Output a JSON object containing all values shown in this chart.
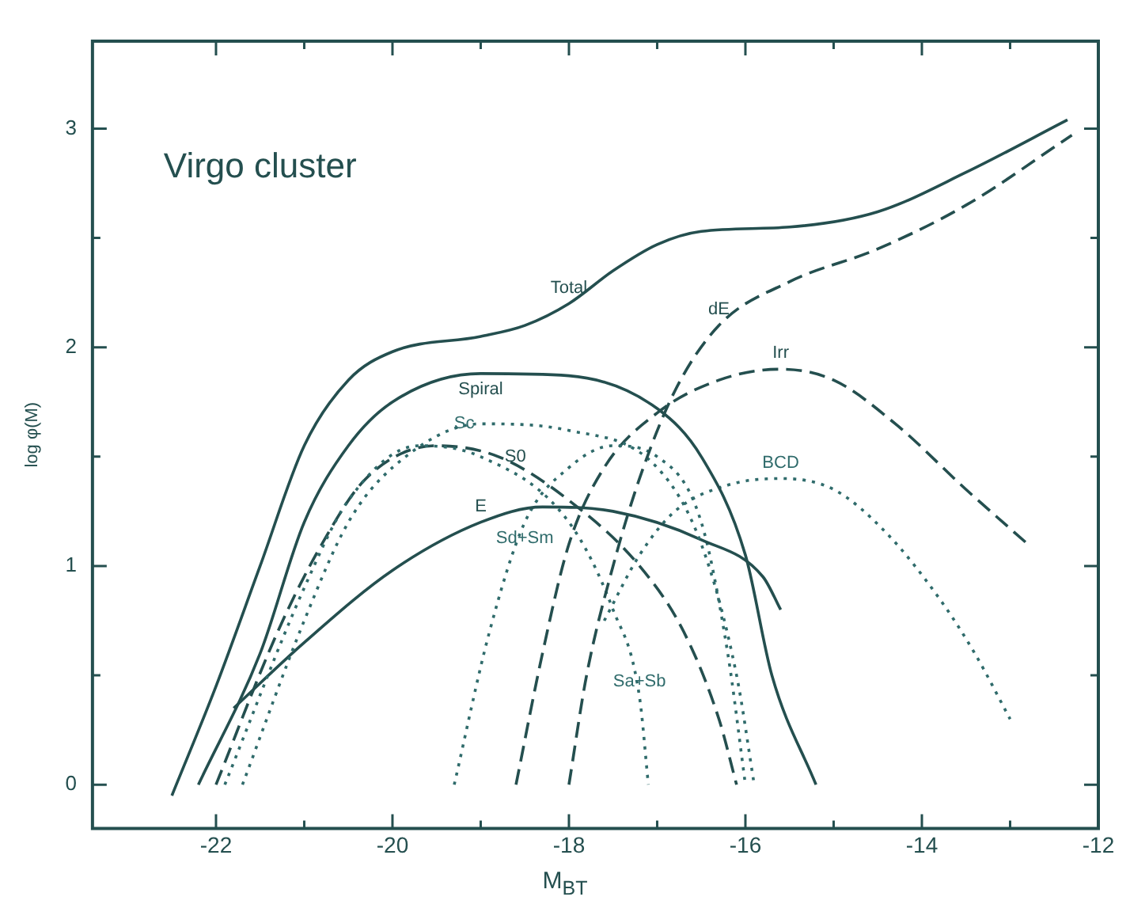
{
  "chart_data": {
    "type": "line",
    "title": "Virgo cluster",
    "xlabel": "M$_{BT}$",
    "ylabel": "log φ(M)",
    "xlim": [
      -23.4,
      -12
    ],
    "ylim": [
      -0.2,
      3.4
    ],
    "xticks": [
      -22,
      {
        "value": -21,
        "label": null
      },
      -20,
      {
        "value": -19,
        "label": null
      },
      -18,
      {
        "value": -17,
        "label": null
      },
      -16,
      {
        "value": -15,
        "label": null
      },
      -14,
      {
        "value": -13,
        "label": null
      },
      -12
    ],
    "yticks": [
      0,
      {
        "value": 0.5,
        "label": null
      },
      1,
      {
        "value": 1.5,
        "label": null
      },
      2,
      {
        "value": 2.5,
        "label": null
      },
      3
    ],
    "grid": false,
    "marker": "none",
    "series": [
      {
        "name": "Total",
        "color": "#244f4f",
        "line_style": "solid",
        "x": [
          -22.5,
          -22,
          -21.5,
          -21,
          -20.5,
          -20,
          -19,
          -18.5,
          -18,
          -17.5,
          -17,
          -16.5,
          -15.5,
          -14.5,
          -13.5,
          -12.35
        ],
        "values": [
          -0.05,
          0.45,
          1.0,
          1.55,
          1.85,
          1.98,
          2.05,
          2.1,
          2.2,
          2.35,
          2.47,
          2.53,
          2.55,
          2.62,
          2.8,
          3.04
        ]
      },
      {
        "name": "dE",
        "color": "#244f4f",
        "line_style": "dashed",
        "x": [
          -18,
          -17.8,
          -17.5,
          -17.2,
          -16.8,
          -16.3,
          -15.5,
          -14.5,
          -13.5,
          -12.3
        ],
        "values": [
          0,
          0.5,
          1.0,
          1.4,
          1.8,
          2.1,
          2.3,
          2.45,
          2.65,
          2.97
        ]
      },
      {
        "name": "Spiral",
        "color": "#244f4f",
        "line_style": "solid",
        "x": [
          -22.2,
          -21.5,
          -21,
          -20.5,
          -20,
          -19,
          -18,
          -17,
          -16.5,
          -16,
          -15.7,
          -15.2
        ],
        "values": [
          0,
          0.6,
          1.2,
          1.55,
          1.75,
          1.88,
          1.87,
          1.72,
          1.5,
          1.05,
          0.5,
          0
        ]
      },
      {
        "name": "Sc",
        "color": "#2f6b6b",
        "line_style": "dotted",
        "x": [
          -21.7,
          -21,
          -20.5,
          -20,
          -19,
          -18,
          -17,
          -16.5,
          -16.1,
          -15.9
        ],
        "values": [
          0,
          0.75,
          1.2,
          1.45,
          1.65,
          1.62,
          1.45,
          1.1,
          0.5,
          0
        ]
      },
      {
        "name": "Sa+Sb",
        "color": "#2f6b6b",
        "line_style": "dotted",
        "x": [
          -21.9,
          -21,
          -20.5,
          -19.7,
          -19,
          -18,
          -17.5,
          -17.2,
          -17.1
        ],
        "values": [
          0,
          0.9,
          1.3,
          1.55,
          1.5,
          1.2,
          0.8,
          0.4,
          0
        ]
      },
      {
        "name": "S0",
        "color": "#244f4f",
        "line_style": "dashed",
        "x": [
          -22,
          -21.3,
          -20.8,
          -20.3,
          -19.5,
          -18.8,
          -18,
          -17.2,
          -16.7,
          -16.3,
          -16.1
        ],
        "values": [
          0,
          0.7,
          1.1,
          1.4,
          1.55,
          1.5,
          1.3,
          1.0,
          0.7,
          0.3,
          0
        ]
      },
      {
        "name": "E",
        "color": "#244f4f",
        "line_style": "solid",
        "x": [
          -21.8,
          -21,
          -20,
          -19,
          -18.3,
          -17.5,
          -16.5,
          -15.8,
          -15.6
        ],
        "values": [
          0.35,
          0.65,
          0.98,
          1.2,
          1.27,
          1.25,
          1.12,
          0.95,
          0.8
        ]
      },
      {
        "name": "Sd+Sm",
        "color": "#2f6b6b",
        "line_style": "dotted",
        "x": [
          -19.3,
          -18.9,
          -18.5,
          -18,
          -17.5,
          -17,
          -16.5,
          -16.2,
          -16
        ],
        "values": [
          0,
          0.7,
          1.2,
          1.45,
          1.55,
          1.5,
          1.2,
          0.6,
          0
        ]
      },
      {
        "name": "Irr",
        "color": "#244f4f",
        "line_style": "dashed",
        "x": [
          -18.6,
          -18.3,
          -18,
          -17.6,
          -17,
          -16.3,
          -15.6,
          -15,
          -14.3,
          -13.5,
          -12.8
        ],
        "values": [
          0,
          0.6,
          1.1,
          1.45,
          1.7,
          1.85,
          1.9,
          1.85,
          1.65,
          1.35,
          1.1
        ]
      },
      {
        "name": "BCD",
        "color": "#2f6b6b",
        "line_style": "dotted",
        "x": [
          -17.6,
          -17.2,
          -16.8,
          -16.2,
          -15.6,
          -15,
          -14.4,
          -13.8,
          -13.4,
          -13
        ],
        "values": [
          0.75,
          1.05,
          1.25,
          1.37,
          1.4,
          1.35,
          1.15,
          0.85,
          0.6,
          0.3
        ]
      }
    ],
    "legend": false
  }
}
